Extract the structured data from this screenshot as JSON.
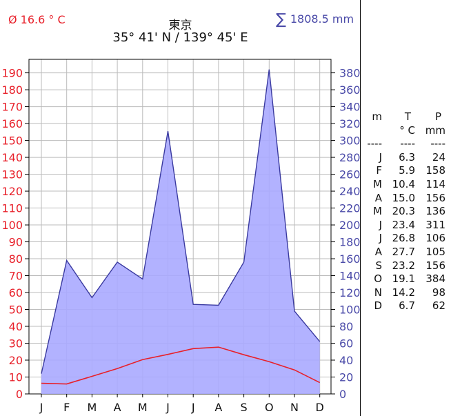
{
  "header": {
    "avg_temp": "Ø 16.6 ° C",
    "station_name": "東京",
    "coordinates": "35° 41' N / 139° 45' E",
    "total_precip_symbol": "∑",
    "total_precip": "1808.5 mm"
  },
  "table": {
    "headers": {
      "month": "m",
      "temp": "T",
      "temp_unit": "° C",
      "precip": "P",
      "precip_unit": "mm",
      "separator": "----"
    },
    "rows": [
      {
        "m": "J",
        "t": "6.3",
        "p": "24"
      },
      {
        "m": "F",
        "t": "5.9",
        "p": "158"
      },
      {
        "m": "M",
        "t": "10.4",
        "p": "114"
      },
      {
        "m": "A",
        "t": "15.0",
        "p": "156"
      },
      {
        "m": "M",
        "t": "20.3",
        "p": "136"
      },
      {
        "m": "J",
        "t": "23.4",
        "p": "311"
      },
      {
        "m": "J",
        "t": "26.8",
        "p": "106"
      },
      {
        "m": "A",
        "t": "27.7",
        "p": "105"
      },
      {
        "m": "S",
        "t": "23.2",
        "p": "156"
      },
      {
        "m": "O",
        "t": "19.1",
        "p": "384"
      },
      {
        "m": "N",
        "t": "14.2",
        "p": "98"
      },
      {
        "m": "D",
        "t": "6.7",
        "p": "62"
      }
    ]
  },
  "colors": {
    "temperature": "#e8202a",
    "precipitation_line": "#3a3aa0",
    "precipitation_fill": "#aaaaff",
    "grid": "#bbbbbb"
  },
  "chart_data": {
    "type": "area",
    "title": "東京",
    "categories": [
      "J",
      "F",
      "M",
      "A",
      "M",
      "J",
      "J",
      "A",
      "S",
      "O",
      "N",
      "D"
    ],
    "series": [
      {
        "name": "T",
        "axis": "left",
        "unit": "° C",
        "values": [
          6.3,
          5.9,
          10.4,
          15.0,
          20.3,
          23.4,
          26.8,
          27.7,
          23.2,
          19.1,
          14.2,
          6.7
        ]
      },
      {
        "name": "P",
        "axis": "right",
        "unit": "mm",
        "values": [
          24,
          158,
          114,
          156,
          136,
          311,
          106,
          105,
          156,
          384,
          98,
          62
        ]
      }
    ],
    "y_left": {
      "ticks": [
        0,
        10,
        20,
        30,
        40,
        50,
        60,
        70,
        80,
        90,
        100,
        110,
        120,
        130,
        140,
        150,
        160,
        170,
        180,
        190
      ],
      "range": [
        0,
        198
      ]
    },
    "y_right": {
      "ticks": [
        0,
        20,
        40,
        60,
        80,
        100,
        120,
        140,
        160,
        180,
        200,
        220,
        240,
        260,
        280,
        300,
        320,
        340,
        360,
        380
      ],
      "range": [
        0,
        396
      ]
    },
    "grid": true
  }
}
